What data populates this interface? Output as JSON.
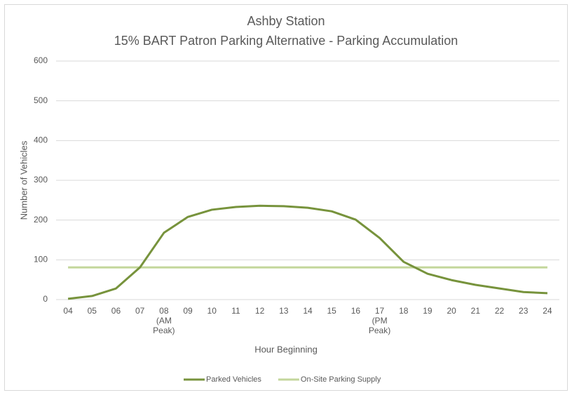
{
  "chart_data": {
    "type": "line",
    "title": "Ashby Station",
    "subtitle": "15% BART Patron Parking Alternative - Parking Accumulation",
    "x_label": "Hour Beginning",
    "y_label": "Number of Vehicles",
    "categories": [
      "04",
      "05",
      "06",
      "07",
      "08\n(AM\nPeak)",
      "09",
      "10",
      "11",
      "12",
      "13",
      "14",
      "15",
      "16",
      "17\n(PM\nPeak)",
      "18",
      "19",
      "20",
      "21",
      "22",
      "23",
      "24"
    ],
    "series": [
      {
        "name": "Parked Vehicles",
        "color": "#77933c",
        "values": [
          2,
          9,
          28,
          81,
          168,
          208,
          226,
          233,
          236,
          235,
          231,
          222,
          201,
          155,
          95,
          65,
          49,
          37,
          28,
          19,
          16
        ]
      },
      {
        "name": "On-Site Parking Supply",
        "color": "#c3d69b",
        "values": [
          81,
          81,
          81,
          81,
          81,
          81,
          81,
          81,
          81,
          81,
          81,
          81,
          81,
          81,
          81,
          81,
          81,
          81,
          81,
          81,
          81
        ]
      }
    ],
    "ylim": [
      0,
      600
    ],
    "yticks": [
      0,
      100,
      200,
      300,
      400,
      500,
      600
    ],
    "grid": true,
    "legend": "bottom"
  }
}
